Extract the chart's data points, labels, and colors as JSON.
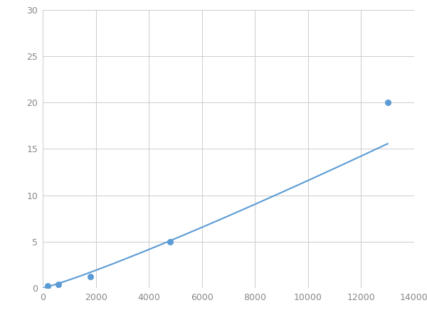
{
  "x_data": [
    200,
    600,
    1800,
    4800,
    13000
  ],
  "y_data": [
    0.2,
    0.4,
    1.2,
    5.0,
    20.0
  ],
  "line_color": "#5b9bd5",
  "marker_color": "#5b9bd5",
  "marker_size": 6,
  "marker_style": "o",
  "line_width": 1.5,
  "xlim": [
    0,
    14000
  ],
  "ylim": [
    0,
    30
  ],
  "xticks": [
    0,
    2000,
    4000,
    6000,
    8000,
    10000,
    12000,
    14000
  ],
  "yticks": [
    0,
    5,
    10,
    15,
    20,
    25,
    30
  ],
  "grid_color": "#cccccc",
  "grid_linewidth": 0.7,
  "background_color": "#ffffff",
  "figure_width": 6.0,
  "figure_height": 4.5,
  "dpi": 100,
  "tick_labelsize": 9,
  "tick_color": "#888888"
}
